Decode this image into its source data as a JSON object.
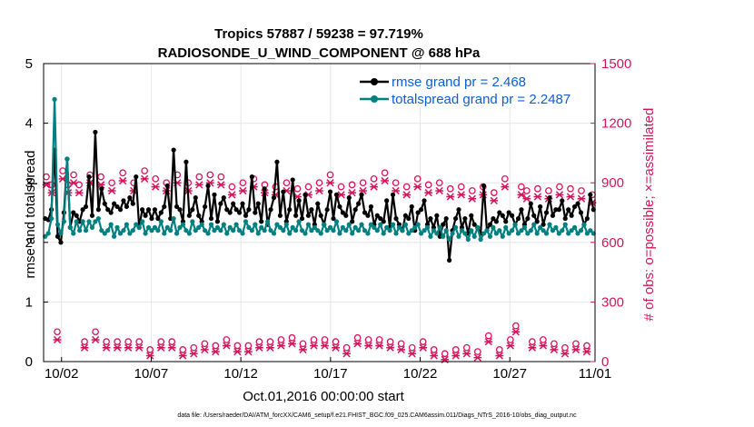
{
  "chart_data": {
    "type": "line",
    "title_line1": "Tropics 57887 / 59238 = 97.719%",
    "title_line2": "RADIOSONDE_U_WIND_COMPONENT @ 688 hPa",
    "xlabel": "Oct.01,2016 00:00:00 start",
    "ylabel_left": "rmse and totalspread",
    "ylabel_right": "# of obs: o=possible; ×=assimilated",
    "ylim_left": [
      0,
      5
    ],
    "ylim_right": [
      0,
      1500
    ],
    "xlim": [
      0.5,
      31.25
    ],
    "x_tick_values": [
      1.5,
      6.5,
      11.5,
      16.5,
      21.5,
      26.5,
      31.5
    ],
    "x_tick_labels": [
      "10/02",
      "10/07",
      "10/12",
      "10/17",
      "10/22",
      "10/27",
      "11/01"
    ],
    "y_left_ticks": [
      "0",
      "1",
      "2",
      "3",
      "4",
      "5"
    ],
    "y_right_ticks": [
      "0",
      "300",
      "600",
      "900",
      "1200",
      "1500"
    ],
    "footnote": "data file: /Users/raeder/DAI/ATM_forcXX/CAM6_setup/f.e21.FHIST_BGC.f09_025.CAM6assim.011/Diags_NTrS_2016-10/obs_diag_output.nc",
    "legend_position": "top-right",
    "colors": {
      "rmse": "#000000",
      "spread": "#008080",
      "obs": "#d4145a",
      "right_axis": "#d4145a",
      "legend_text": "#0b5fd6"
    },
    "series": [
      {
        "name": "rmse grand pr = 2.468",
        "key": "rmse",
        "values": [
          2.4,
          2.38,
          2.55,
          3.55,
          2.1,
          2.0,
          2.5,
          3.4,
          2.25,
          2.5,
          2.45,
          2.35,
          2.55,
          2.6,
          3.1,
          2.45,
          3.85,
          2.55,
          2.9,
          2.65,
          2.55,
          2.5,
          2.65,
          2.6,
          2.55,
          2.7,
          2.6,
          2.75,
          2.65,
          3.1,
          2.25,
          2.55,
          2.45,
          2.55,
          2.4,
          2.55,
          2.4,
          2.5,
          2.6,
          2.95,
          2.4,
          3.55,
          2.6,
          2.55,
          2.35,
          3.35,
          2.45,
          2.55,
          2.75,
          2.45,
          2.35,
          2.6,
          2.95,
          2.4,
          2.8,
          2.35,
          2.65,
          2.75,
          2.55,
          2.5,
          2.65,
          2.55,
          2.5,
          2.65,
          2.45,
          2.55,
          3.1,
          2.5,
          2.65,
          2.35,
          2.9,
          2.3,
          2.55,
          2.75,
          3.35,
          2.45,
          2.85,
          2.35,
          2.55,
          3.05,
          2.45,
          2.7,
          2.4,
          2.8,
          2.45,
          2.55,
          2.3,
          2.65,
          2.45,
          2.3,
          2.55,
          2.85,
          2.4,
          2.8,
          2.6,
          2.5,
          2.45,
          2.75,
          2.35,
          2.55,
          2.65,
          2.8,
          2.5,
          2.45,
          2.6,
          2.3,
          2.45,
          2.4,
          2.35,
          2.7,
          2.25,
          2.8,
          2.4,
          2.3,
          2.2,
          2.45,
          2.4,
          2.6,
          2.2,
          2.5,
          2.55,
          2.7,
          2.3,
          2.4,
          2.25,
          2.45,
          2.1,
          2.3,
          2.4,
          1.7,
          2.2,
          2.4,
          2.55,
          2.25,
          2.4,
          2.15,
          2.45,
          2.3,
          2.25,
          2.15,
          2.95,
          2.2,
          2.3,
          2.4,
          2.35,
          2.5,
          2.45,
          2.35,
          2.5,
          2.45,
          2.3,
          2.4,
          2.55,
          2.3,
          2.4,
          2.65,
          2.45,
          2.35,
          2.6,
          2.3,
          2.5,
          2.75,
          2.45,
          2.55,
          2.55,
          2.7,
          2.4,
          2.55,
          2.45,
          2.6,
          2.65,
          2.5,
          2.3,
          2.4,
          2.8,
          2.55
        ]
      },
      {
        "name": "totalspread grand pr = 2.2487",
        "key": "spread",
        "values": [
          2.1,
          2.15,
          2.4,
          4.4,
          2.3,
          2.15,
          2.35,
          3.4,
          2.25,
          2.15,
          2.35,
          2.2,
          2.35,
          2.2,
          2.35,
          2.25,
          2.35,
          2.4,
          2.2,
          2.15,
          2.2,
          2.3,
          2.1,
          2.25,
          2.15,
          2.2,
          2.3,
          2.15,
          2.2,
          2.3,
          2.25,
          2.35,
          2.15,
          2.25,
          2.2,
          2.25,
          2.2,
          2.35,
          2.15,
          2.25,
          2.2,
          2.4,
          2.15,
          2.25,
          2.3,
          2.2,
          2.15,
          2.35,
          2.2,
          2.25,
          2.3,
          2.2,
          2.15,
          2.3,
          2.2,
          2.25,
          2.2,
          2.3,
          2.15,
          2.25,
          2.2,
          2.3,
          2.2,
          2.15,
          2.35,
          2.25,
          2.2,
          2.3,
          2.15,
          2.25,
          2.2,
          2.35,
          2.2,
          2.15,
          2.3,
          2.25,
          2.2,
          2.3,
          2.15,
          2.25,
          2.2,
          2.35,
          2.2,
          2.15,
          2.3,
          2.2,
          2.25,
          2.2,
          2.15,
          2.3,
          2.2,
          2.25,
          2.2,
          2.35,
          2.15,
          2.25,
          2.2,
          2.3,
          2.15,
          2.25,
          2.2,
          2.3,
          2.2,
          2.15,
          2.3,
          2.25,
          2.2,
          2.3,
          2.15,
          2.25,
          2.2,
          2.3,
          2.15,
          2.25,
          2.2,
          2.3,
          2.15,
          2.2,
          2.25,
          2.3,
          2.15,
          2.2,
          2.25,
          2.1,
          2.2,
          2.15,
          2.25,
          2.1,
          2.2,
          2.05,
          2.15,
          2.25,
          2.1,
          2.2,
          2.15,
          2.05,
          2.2,
          2.1,
          2.25,
          2.05,
          2.15,
          2.2,
          2.1,
          2.25,
          2.15,
          2.2,
          2.1,
          2.25,
          2.15,
          2.2,
          2.3,
          2.15,
          2.2,
          2.25,
          2.15,
          2.2,
          2.3,
          2.15,
          2.25,
          2.2,
          2.15,
          2.3,
          2.2,
          2.25,
          2.15,
          2.2,
          2.3,
          2.15,
          2.2,
          2.25,
          2.15,
          2.2,
          2.3,
          2.15,
          2.2,
          2.15
        ]
      }
    ],
    "obs_possible": [
      930,
      890,
      150,
      960,
      890,
      940,
      890,
      100,
      940,
      150,
      930,
      100,
      900,
      100,
      950,
      100,
      900,
      100,
      960,
      60,
      920,
      100,
      900,
      100,
      940,
      60,
      900,
      70,
      930,
      90,
      940,
      80,
      930,
      110,
      880,
      80,
      900,
      80,
      920,
      100,
      890,
      100,
      880,
      110,
      900,
      120,
      870,
      90,
      880,
      110,
      900,
      110,
      940,
      100,
      880,
      70,
      890,
      120,
      900,
      110,
      920,
      110,
      950,
      100,
      900,
      90,
      880,
      70,
      920,
      100,
      890,
      60,
      900,
      40,
      870,
      60,
      880,
      70,
      860,
      50,
      880,
      130,
      850,
      60,
      920,
      110,
      180,
      880,
      860,
      100,
      870,
      110,
      860,
      90,
      880,
      70,
      870,
      90,
      860,
      80,
      840
    ],
    "obs_assimilated": [
      890,
      850,
      110,
      920,
      850,
      900,
      850,
      70,
      900,
      110,
      890,
      70,
      860,
      70,
      910,
      70,
      860,
      70,
      920,
      30,
      880,
      70,
      860,
      70,
      900,
      30,
      860,
      40,
      890,
      60,
      900,
      50,
      890,
      80,
      840,
      50,
      860,
      50,
      880,
      70,
      850,
      70,
      840,
      80,
      860,
      90,
      830,
      60,
      840,
      80,
      860,
      80,
      900,
      70,
      840,
      40,
      850,
      90,
      860,
      80,
      880,
      80,
      910,
      70,
      860,
      60,
      840,
      40,
      880,
      70,
      850,
      30,
      860,
      10,
      830,
      30,
      840,
      40,
      820,
      20,
      840,
      100,
      810,
      30,
      880,
      80,
      150,
      840,
      820,
      70,
      830,
      80,
      820,
      60,
      840,
      40,
      830,
      60,
      820,
      50,
      800
    ]
  }
}
